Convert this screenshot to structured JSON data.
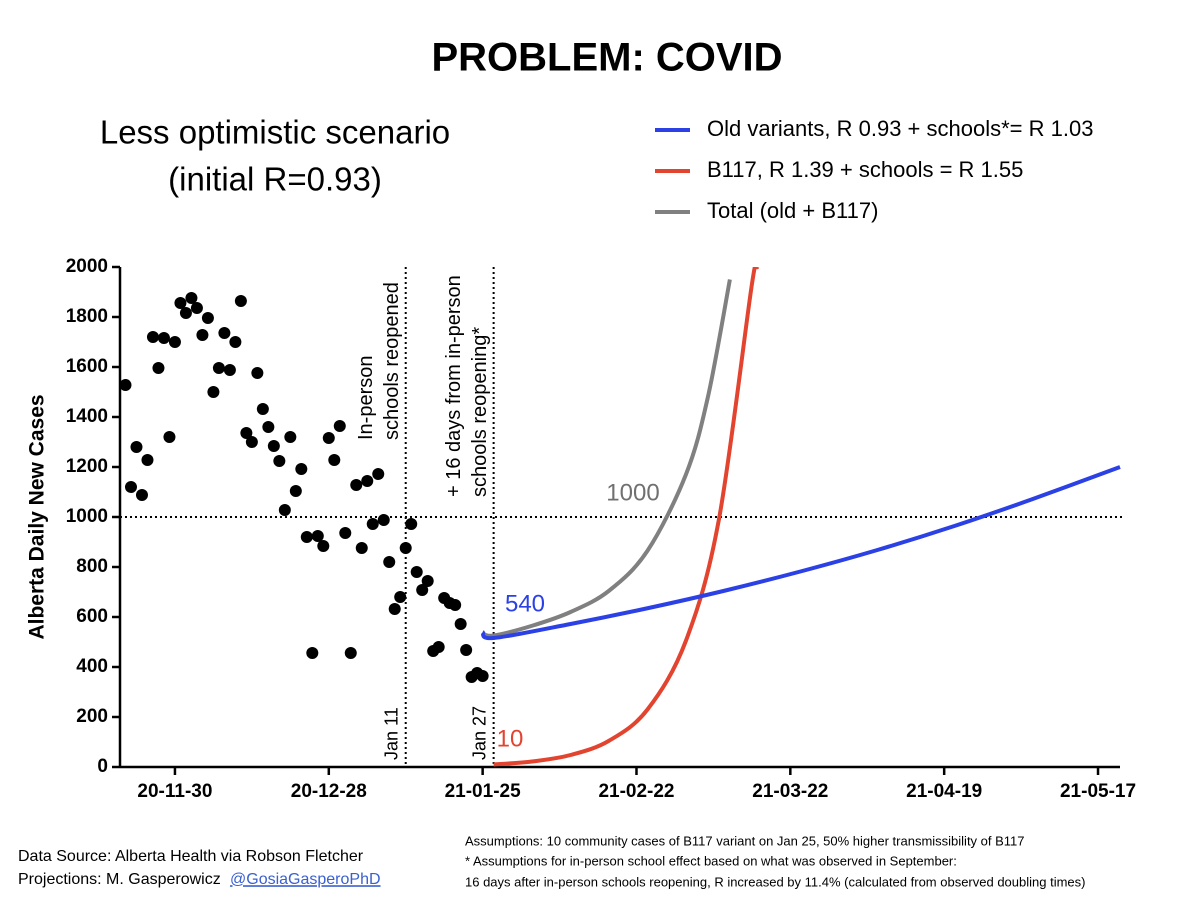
{
  "chart_data": {
    "type": "scatter-line",
    "title": "PROBLEM: COVID",
    "subtitle": [
      "Less optimistic scenario",
      "(initial R=0.93)"
    ],
    "ylabel": "Alberta Daily New Cases",
    "xlim": [
      "20-11-20",
      "21-05-21"
    ],
    "xticks": [
      "20-11-30",
      "20-12-28",
      "21-01-25",
      "21-02-22",
      "21-03-22",
      "21-04-19",
      "21-05-17"
    ],
    "ylim": [
      0,
      2000
    ],
    "yticks": [
      0,
      200,
      400,
      600,
      800,
      1000,
      1200,
      1400,
      1600,
      1800,
      2000
    ],
    "points": {
      "color": "#000000",
      "x": [
        "20-11-21",
        "20-11-22",
        "20-11-23",
        "20-11-24",
        "20-11-25",
        "20-11-26",
        "20-11-27",
        "20-11-28",
        "20-11-29",
        "20-11-30",
        "20-12-01",
        "20-12-02",
        "20-12-03",
        "20-12-04",
        "20-12-05",
        "20-12-06",
        "20-12-07",
        "20-12-08",
        "20-12-09",
        "20-12-10",
        "20-12-11",
        "20-12-12",
        "20-12-13",
        "20-12-14",
        "20-12-15",
        "20-12-16",
        "20-12-17",
        "20-12-18",
        "20-12-19",
        "20-12-20",
        "20-12-21",
        "20-12-22",
        "20-12-23",
        "20-12-24",
        "20-12-25",
        "20-12-26",
        "20-12-27",
        "20-12-28",
        "20-12-29",
        "20-12-30",
        "20-12-31",
        "21-01-01",
        "21-01-02",
        "21-01-03",
        "21-01-04",
        "21-01-05",
        "21-01-06",
        "21-01-07",
        "21-01-08",
        "21-01-09",
        "21-01-10",
        "21-01-11",
        "21-01-12",
        "21-01-13",
        "21-01-14",
        "21-01-15",
        "21-01-16",
        "21-01-17",
        "21-01-18",
        "21-01-19",
        "21-01-20",
        "21-01-21",
        "21-01-22",
        "21-01-23",
        "21-01-24",
        "21-01-25"
      ],
      "values": [
        1528,
        1120,
        1280,
        1088,
        1228,
        1720,
        1596,
        1716,
        1320,
        1700,
        1856,
        1816,
        1876,
        1836,
        1728,
        1796,
        1500,
        1596,
        1736,
        1588,
        1700,
        1864,
        1336,
        1300,
        1576,
        1432,
        1360,
        1284,
        1224,
        1028,
        1320,
        1104,
        1192,
        920,
        456,
        924,
        884,
        1316,
        1228,
        1364,
        936,
        456,
        1128,
        876,
        1144,
        972,
        1172,
        988,
        820,
        632,
        680,
        876,
        972,
        780,
        708,
        744,
        464,
        480,
        676,
        656,
        648,
        572,
        468,
        360,
        376,
        364
      ]
    },
    "series": [
      {
        "name": "Old variants, R 0.93 + schools*= R 1.03",
        "color": "#2b41e6",
        "x": [
          "21-01-25",
          "21-01-27",
          "21-02-10",
          "21-02-24",
          "21-03-10",
          "21-03-24",
          "21-04-07",
          "21-04-21",
          "21-05-05",
          "21-05-21"
        ],
        "values": [
          540,
          516,
          572,
          635,
          705,
          783,
          869,
          965,
          1071,
          1200
        ]
      },
      {
        "name": "B117, R 1.39 + schools = R 1.55",
        "color": "#e2442f",
        "x": [
          "21-01-27",
          "21-02-03",
          "21-02-10",
          "21-02-17",
          "21-02-24",
          "21-03-03",
          "21-03-09",
          "21-03-15",
          "21-03-16"
        ],
        "values": [
          10,
          22,
          48,
          105,
          230,
          505,
          990,
          1930,
          2000
        ]
      },
      {
        "name": "Total (old + B117)",
        "color": "#808080",
        "x": [
          "21-01-25",
          "21-01-27",
          "21-02-03",
          "21-02-10",
          "21-02-17",
          "21-02-24",
          "21-03-03",
          "21-03-07",
          "21-03-11"
        ],
        "values": [
          535,
          526,
          565,
          620,
          705,
          865,
          1170,
          1480,
          1950
        ]
      }
    ],
    "hline": 1000,
    "vlines": [
      {
        "x": "21-01-11",
        "label": "Jan 11",
        "note": [
          "In-person",
          "schools reopened"
        ]
      },
      {
        "x": "21-01-27",
        "label": "Jan 27",
        "note": [
          "+ 16 days from in-person",
          "schools reopening*"
        ]
      }
    ],
    "annotations": [
      {
        "text": "1000",
        "color": "#707070"
      },
      {
        "text": "540",
        "color": "#2b41e6"
      },
      {
        "text": "10",
        "color": "#e2442f"
      }
    ],
    "footer": {
      "source": [
        "Data Source: Alberta Health via Robson Fletcher",
        "Projections: M. Gasperowicz"
      ],
      "handle": "@GosiaGasperoPhD",
      "assumptions": [
        "Assumptions: 10 community cases of B117 variant on Jan 25, 50% higher transmissibility of B117",
        "* Assumptions for in-person school effect based on what was observed in September:",
        "16 days after in-person schools reopening, R increased by 11.4% (calculated from observed doubling times)"
      ]
    }
  }
}
